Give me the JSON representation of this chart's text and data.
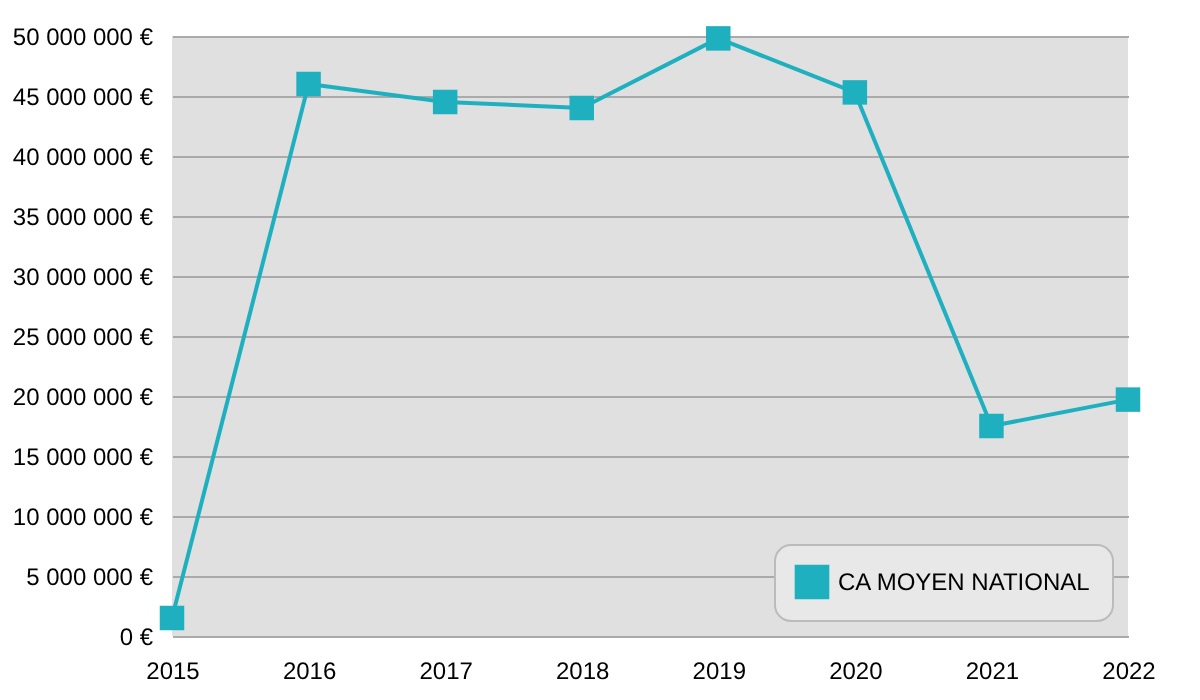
{
  "chart_data": {
    "type": "line",
    "categories": [
      "2015",
      "2016",
      "2017",
      "2018",
      "2019",
      "2020",
      "2021",
      "2022"
    ],
    "series": [
      {
        "name": "CA MOYEN NATIONAL",
        "color": "#1fb0c0",
        "values": [
          1500000,
          46000000,
          44500000,
          44000000,
          49800000,
          45300000,
          17500000,
          19700000
        ]
      }
    ],
    "ylim": [
      0,
      50000000
    ],
    "yticks": [
      {
        "value": 0,
        "label": "0 €"
      },
      {
        "value": 5000000,
        "label": "5 000 000 €"
      },
      {
        "value": 10000000,
        "label": "10 000 000 €"
      },
      {
        "value": 15000000,
        "label": "15 000 000 €"
      },
      {
        "value": 20000000,
        "label": "20 000 000 €"
      },
      {
        "value": 25000000,
        "label": "25 000 000 €"
      },
      {
        "value": 30000000,
        "label": "30 000 000 €"
      },
      {
        "value": 35000000,
        "label": "35 000 000 €"
      },
      {
        "value": 40000000,
        "label": "40 000 000 €"
      },
      {
        "value": 45000000,
        "label": "45 000 000 €"
      },
      {
        "value": 50000000,
        "label": "50 000 000 €"
      }
    ],
    "grid": "y",
    "legend": "bottom right",
    "marker": "square",
    "line_style": "solid"
  }
}
